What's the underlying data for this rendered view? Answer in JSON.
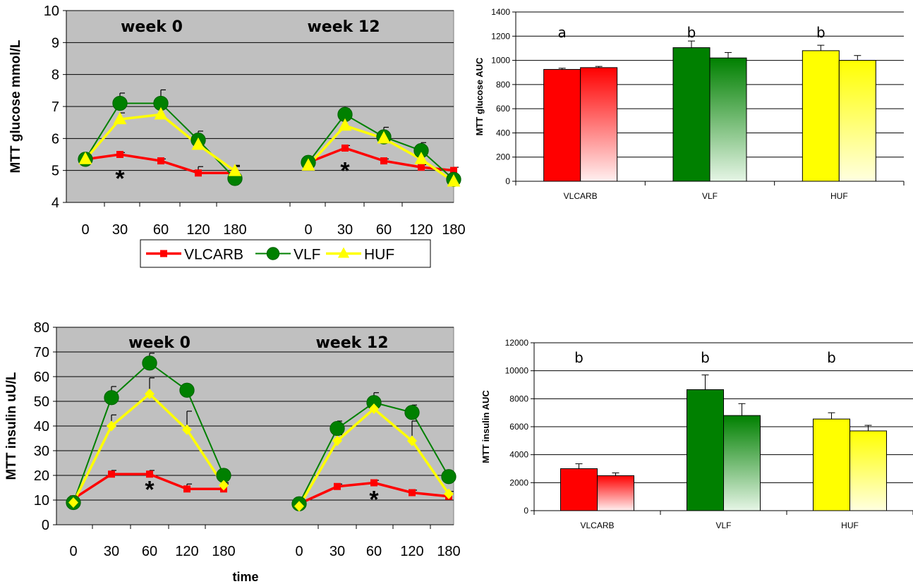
{
  "chart_data": [
    {
      "id": "glucose_line",
      "type": "line",
      "ylabel": "MTT glucose mmol/L",
      "ylim": [
        4,
        10
      ],
      "yticks": [
        "4",
        "5",
        "6",
        "7",
        "8",
        "9",
        "10"
      ],
      "categories": [
        "0",
        "30",
        "60",
        "120",
        "180"
      ],
      "panels": [
        {
          "label": "week 0",
          "series": [
            {
              "name": "VLCARB",
              "values": [
                5.35,
                5.5,
                5.3,
                4.92,
                4.92
              ],
              "err": [
                0.05,
                0.06,
                0.06,
                0.2,
                0.2
              ]
            },
            {
              "name": "VLF",
              "values": [
                5.35,
                7.1,
                7.1,
                5.95,
                4.75
              ],
              "err": [
                0.1,
                0.32,
                0.42,
                0.28,
                0.38
              ]
            },
            {
              "name": "HUF",
              "values": [
                5.35,
                6.6,
                6.75,
                5.8,
                4.98
              ],
              "err": [
                0.1,
                0.2,
                0.28,
                0.28,
                0.18
              ]
            }
          ],
          "annotation": "*",
          "annotation_pos": [
            1,
            4.8
          ]
        },
        {
          "label": "week 12",
          "series": [
            {
              "name": "VLCARB",
              "values": [
                5.25,
                5.7,
                5.3,
                5.1,
                5.0
              ],
              "err": [
                0.05,
                0.08,
                0.06,
                0.08,
                0.1
              ]
            },
            {
              "name": "VLF",
              "values": [
                5.25,
                6.75,
                6.05,
                5.62,
                4.72
              ],
              "err": [
                0.1,
                0.18,
                0.3,
                0.25,
                0.15
              ]
            },
            {
              "name": "HUF",
              "values": [
                5.15,
                6.4,
                6.0,
                5.35,
                4.65
              ],
              "err": [
                0.1,
                0.18,
                0.2,
                0.15,
                0.1
              ]
            }
          ],
          "annotation": "*",
          "annotation_pos": [
            1,
            5.05
          ]
        }
      ],
      "legend": [
        "VLCARB",
        "VLF",
        "HUF"
      ],
      "legend_position": "bottom"
    },
    {
      "id": "glucose_bar",
      "type": "bar",
      "ylabel": "MTT glucose AUC",
      "ylim": [
        0,
        1400
      ],
      "yticks": [
        "0",
        "200",
        "400",
        "600",
        "800",
        "1000",
        "1200",
        "1400"
      ],
      "categories": [
        "VLCARB",
        "VLF",
        "HUF"
      ],
      "series": [
        {
          "values": [
            925,
            1105,
            1080
          ],
          "err": [
            10,
            55,
            45
          ]
        },
        {
          "values": [
            940,
            1020,
            1000
          ],
          "err": [
            10,
            45,
            40
          ]
        }
      ],
      "letters": [
        "a",
        "b",
        "b"
      ]
    },
    {
      "id": "insulin_line",
      "type": "line",
      "ylabel": "MTT insulin uU/L",
      "xlabel": "time",
      "ylim": [
        0,
        80
      ],
      "yticks": [
        "0",
        "10",
        "20",
        "30",
        "40",
        "50",
        "60",
        "70",
        "80"
      ],
      "categories": [
        "0",
        "30",
        "60",
        "120",
        "180"
      ],
      "panels": [
        {
          "label": "week 0",
          "series": [
            {
              "name": "VLCARB",
              "values": [
                10.5,
                20.5,
                20.5,
                14.5,
                14.5
              ],
              "err": [
                0.5,
                1.5,
                1.5,
                2.0,
                2.0
              ]
            },
            {
              "name": "VLF",
              "values": [
                9.0,
                51.5,
                65.5,
                54.5,
                20.0
              ],
              "err": [
                0.5,
                4.5,
                4.0,
                2.0,
                1.0
              ]
            },
            {
              "name": "HUF",
              "values": [
                9.0,
                40.0,
                53.0,
                38.5,
                16.0
              ],
              "err": [
                0.5,
                4.5,
                6.5,
                7.5,
                1.0
              ]
            }
          ],
          "annotation": "*",
          "annotation_pos": [
            2,
            15
          ]
        },
        {
          "label": "week 12",
          "series": [
            {
              "name": "VLCARB",
              "values": [
                8.5,
                15.5,
                17.0,
                13.0,
                11.5
              ],
              "err": [
                0.5,
                1.0,
                1.0,
                1.0,
                1.0
              ]
            },
            {
              "name": "VLF",
              "values": [
                8.5,
                39.0,
                49.5,
                45.5,
                19.5
              ],
              "err": [
                0.5,
                3.0,
                4.0,
                3.0,
                1.0
              ]
            },
            {
              "name": "HUF",
              "values": [
                7.5,
                34.0,
                47.0,
                34.0,
                12.5
              ],
              "err": [
                0.5,
                2.5,
                2.5,
                8.0,
                1.0
              ]
            }
          ],
          "annotation": "*",
          "annotation_pos": [
            2,
            11
          ]
        }
      ]
    },
    {
      "id": "insulin_bar",
      "type": "bar",
      "ylabel": "MTT insulin AUC",
      "ylim": [
        0,
        12000
      ],
      "yticks": [
        "0",
        "2000",
        "4000",
        "6000",
        "8000",
        "10000",
        "12000"
      ],
      "categories": [
        "VLCARB",
        "VLF",
        "HUF"
      ],
      "series": [
        {
          "values": [
            3000,
            8650,
            6550
          ],
          "err": [
            350,
            1050,
            450
          ]
        },
        {
          "values": [
            2500,
            6800,
            5700
          ],
          "err": [
            200,
            850,
            400
          ]
        }
      ],
      "letters": [
        "b",
        "b",
        "b"
      ]
    }
  ],
  "colors": {
    "VLCARB": "#ff0000",
    "VLF": "#008000",
    "HUF": "#ffff00",
    "plot_bg": "#c0c0c0"
  }
}
